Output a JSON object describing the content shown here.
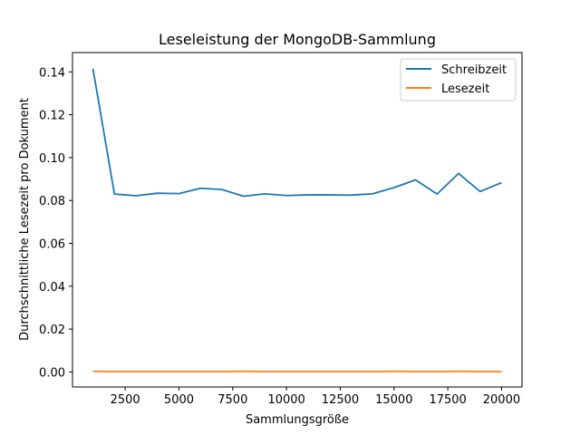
{
  "chart_data": {
    "type": "line",
    "title": "Leseleistung der MongoDB-Sammlung",
    "xlabel": "Sammlungsgröße",
    "ylabel": "Durchschnittliche Lesezeit pro Dokument",
    "xlim": [
      50,
      20950
    ],
    "ylim": [
      -0.007,
      0.149
    ],
    "xticks": [
      2500,
      5000,
      7500,
      10000,
      12500,
      15000,
      17500,
      20000
    ],
    "xtick_labels": [
      "2500",
      "5000",
      "7500",
      "10000",
      "12500",
      "15000",
      "17500",
      "20000"
    ],
    "yticks": [
      0.0,
      0.02,
      0.04,
      0.06,
      0.08,
      0.1,
      0.12,
      0.14
    ],
    "ytick_labels": [
      "0.00",
      "0.02",
      "0.04",
      "0.06",
      "0.08",
      "0.10",
      "0.12",
      "0.14"
    ],
    "grid": false,
    "legend_position": "top-right",
    "x": [
      1000,
      2000,
      3000,
      4000,
      5000,
      6000,
      7000,
      8000,
      9000,
      10000,
      11000,
      12000,
      13000,
      14000,
      15000,
      16000,
      17000,
      18000,
      19000,
      20000
    ],
    "series": [
      {
        "name": "Schreibzeit",
        "color": "#1f77b4",
        "values": [
          0.1415,
          0.083,
          0.0822,
          0.0834,
          0.0832,
          0.0857,
          0.0851,
          0.082,
          0.0831,
          0.0823,
          0.0826,
          0.0826,
          0.0825,
          0.0831,
          0.086,
          0.0896,
          0.083,
          0.0926,
          0.0842,
          0.0883
        ]
      },
      {
        "name": "Lesezeit",
        "color": "#ff7f0e",
        "values": [
          0.0003,
          0.0002,
          0.0002,
          0.0002,
          0.0002,
          0.0002,
          0.0002,
          0.0003,
          0.0002,
          0.0002,
          0.0002,
          0.0002,
          0.0002,
          0.0002,
          0.0003,
          0.0002,
          0.0002,
          0.0003,
          0.0002,
          0.0002
        ]
      }
    ]
  }
}
